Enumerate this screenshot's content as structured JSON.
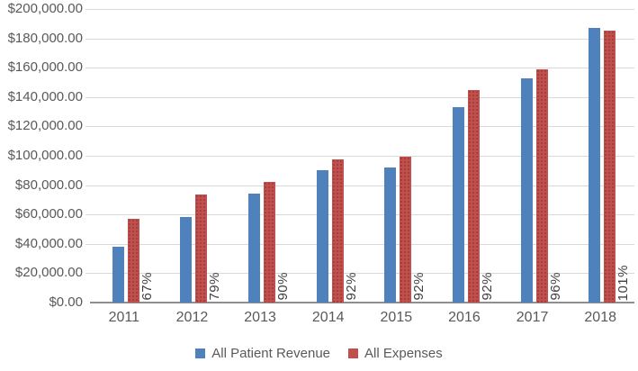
{
  "chart_data": {
    "type": "bar",
    "title": "",
    "categories": [
      "2011",
      "2012",
      "2013",
      "2014",
      "2015",
      "2016",
      "2017",
      "2018"
    ],
    "series": [
      {
        "name": "All Patient Revenue",
        "color": "#4F81BD",
        "values": [
          38000,
          58000,
          74000,
          90000,
          92000,
          133000,
          152500,
          187000
        ]
      },
      {
        "name": "All Expenses",
        "color": "#C0504D",
        "values": [
          57000,
          73500,
          82000,
          97500,
          99500,
          145000,
          159000,
          185500
        ]
      }
    ],
    "bar_labels": {
      "description": "revenue-to-expense percentage, rotated 90deg beside each expenses bar",
      "values": [
        "67%",
        "79%",
        "90%",
        "92%",
        "92%",
        "92%",
        "96%",
        "101%"
      ]
    },
    "y_axis": {
      "min": 0,
      "max": 200000,
      "step": 20000,
      "format": "$#,##0.00",
      "tick_labels": [
        "$0.00",
        "$20,000.00",
        "$40,000.00",
        "$60,000.00",
        "$80,000.00",
        "$100,000.00",
        "$120,000.00",
        "$140,000.00",
        "$160,000.00",
        "$180,000.00",
        "$200,000.00"
      ]
    },
    "x_axis": {
      "label": ""
    },
    "legend": {
      "position": "bottom",
      "entries": [
        "All Patient Revenue",
        "All Expenses"
      ]
    },
    "grid": true,
    "colors": {
      "revenue_bar": "#4F81BD",
      "expenses_bar": "#C0504D",
      "gridline": "#D9D9D9",
      "axis_line": "#8E8E8E",
      "axis_text": "#595959",
      "percent_text": "#404040"
    }
  }
}
